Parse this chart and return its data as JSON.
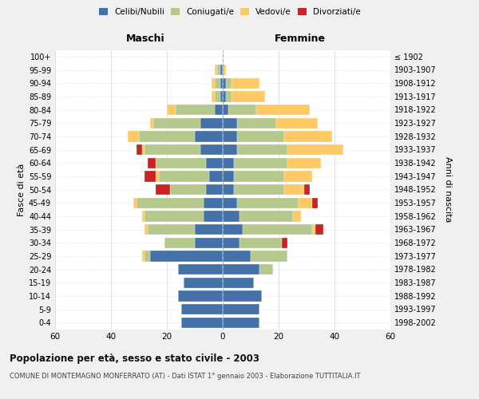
{
  "age_groups": [
    "0-4",
    "5-9",
    "10-14",
    "15-19",
    "20-24",
    "25-29",
    "30-34",
    "35-39",
    "40-44",
    "45-49",
    "50-54",
    "55-59",
    "60-64",
    "65-69",
    "70-74",
    "75-79",
    "80-84",
    "85-89",
    "90-94",
    "95-99",
    "100+"
  ],
  "birth_years": [
    "1998-2002",
    "1993-1997",
    "1988-1992",
    "1983-1987",
    "1978-1982",
    "1973-1977",
    "1968-1972",
    "1963-1967",
    "1958-1962",
    "1953-1957",
    "1948-1952",
    "1943-1947",
    "1938-1942",
    "1933-1937",
    "1928-1932",
    "1923-1927",
    "1918-1922",
    "1913-1917",
    "1908-1912",
    "1903-1907",
    "≤ 1902"
  ],
  "maschi": {
    "celibi": [
      15,
      15,
      16,
      14,
      16,
      26,
      10,
      10,
      7,
      7,
      6,
      5,
      6,
      8,
      10,
      8,
      3,
      1,
      1,
      1,
      0
    ],
    "coniugati": [
      0,
      0,
      0,
      0,
      0,
      2,
      11,
      17,
      21,
      24,
      13,
      18,
      18,
      20,
      20,
      17,
      14,
      2,
      2,
      1,
      0
    ],
    "vedovi": [
      0,
      0,
      0,
      0,
      0,
      1,
      0,
      1,
      1,
      1,
      0,
      1,
      0,
      1,
      4,
      1,
      3,
      1,
      1,
      1,
      0
    ],
    "divorziati": [
      0,
      0,
      0,
      0,
      0,
      0,
      0,
      0,
      0,
      0,
      5,
      4,
      3,
      2,
      0,
      0,
      0,
      0,
      0,
      0,
      0
    ]
  },
  "femmine": {
    "nubili": [
      13,
      13,
      14,
      11,
      13,
      10,
      6,
      7,
      6,
      5,
      4,
      4,
      4,
      5,
      5,
      5,
      2,
      1,
      1,
      0,
      0
    ],
    "coniugate": [
      0,
      0,
      0,
      0,
      5,
      13,
      15,
      25,
      19,
      22,
      18,
      18,
      19,
      18,
      17,
      14,
      10,
      2,
      2,
      0,
      0
    ],
    "vedove": [
      0,
      0,
      0,
      0,
      0,
      0,
      0,
      1,
      3,
      5,
      7,
      10,
      12,
      20,
      17,
      15,
      19,
      12,
      10,
      1,
      0
    ],
    "divorziate": [
      0,
      0,
      0,
      0,
      0,
      0,
      2,
      3,
      0,
      2,
      2,
      0,
      0,
      0,
      0,
      0,
      0,
      0,
      0,
      0,
      0
    ]
  },
  "colors": {
    "celibi": "#4472a8",
    "coniugati": "#b5c98e",
    "vedovi": "#ffc966",
    "divorziati": "#cc2222"
  },
  "legend_labels": [
    "Celibi/Nubili",
    "Coniugati/e",
    "Vedovi/e",
    "Divorziati/e"
  ],
  "title": "Popolazione per età, sesso e stato civile - 2003",
  "subtitle": "COMUNE DI MONTEMAGNO MONFERRATO (AT) - Dati ISTAT 1° gennaio 2003 - Elaborazione TUTTITALIA.IT",
  "ylabel_left": "Fasce di età",
  "ylabel_right": "Anni di nascita",
  "label_maschi": "Maschi",
  "label_femmine": "Femmine",
  "xlim": 60,
  "bg_color": "#f0f0f0",
  "plot_bg": "#ffffff"
}
